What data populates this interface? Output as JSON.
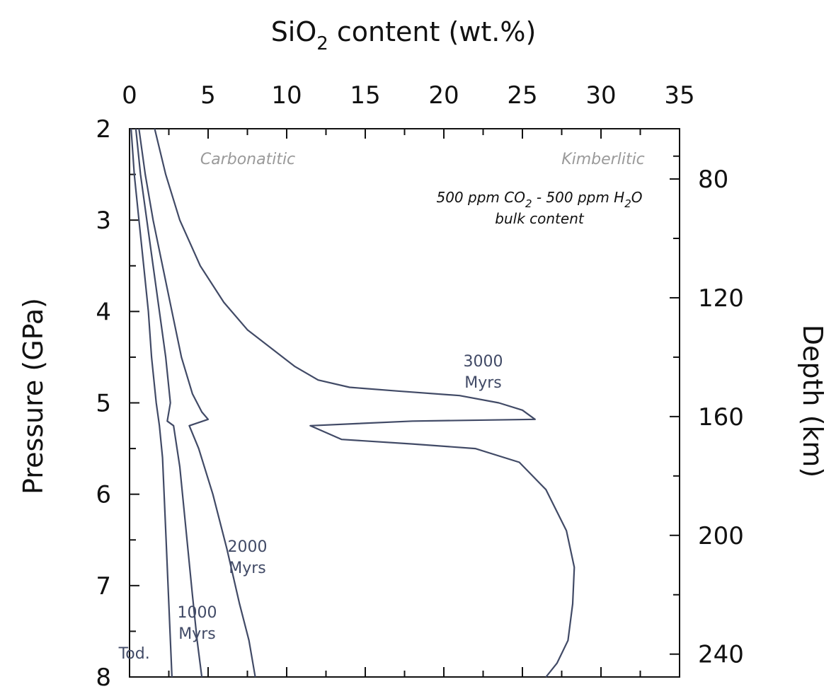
{
  "chart_data": {
    "type": "line",
    "title": "",
    "xlabel": "SiO",
    "xlabel_sub": "2",
    "xlabel_rest": " content (wt.%)",
    "ylabel": "Pressure (GPa)",
    "y2label": "Depth (km)",
    "xlim": [
      0,
      35
    ],
    "ylim": [
      2,
      8
    ],
    "y_inverted": true,
    "x_axis_position": "top",
    "x_ticks": [
      0,
      5,
      10,
      15,
      20,
      25,
      30,
      35
    ],
    "y_ticks": [
      2,
      3,
      4,
      5,
      6,
      7,
      8
    ],
    "y2_ticks": [
      80,
      120,
      160,
      200,
      240
    ],
    "y2_tick_pressure": [
      2.55,
      3.85,
      5.15,
      6.45,
      7.75
    ],
    "grid": false,
    "region_labels": {
      "left": "Carbonatitic",
      "right": "Kimberlitic"
    },
    "note": {
      "line1_a": "500 ppm CO",
      "line1_sub": "2",
      "line1_b": " - 500 ppm H",
      "line1_sub2": "2",
      "line1_c": "O",
      "line2": "bulk content"
    },
    "series": [
      {
        "label_lines": [
          "Tod."
        ],
        "label_at": {
          "x": 0.3,
          "y": 7.8
        },
        "x": [
          0.1,
          0.3,
          0.6,
          0.9,
          1.2,
          1.4,
          1.7,
          1.9,
          2.1,
          2.3,
          2.5,
          2.7
        ],
        "y": [
          2.0,
          2.5,
          3.0,
          3.5,
          4.0,
          4.5,
          5.0,
          5.25,
          5.6,
          6.4,
          7.2,
          8.0
        ]
      },
      {
        "label_lines": [
          "1000",
          "Myrs"
        ],
        "label_at": {
          "x": 4.3,
          "y": 7.35
        },
        "x": [
          0.4,
          0.7,
          1.1,
          1.5,
          1.9,
          2.3,
          2.6,
          2.4,
          2.8,
          3.2,
          3.6,
          4.0,
          4.3,
          4.6
        ],
        "y": [
          2.0,
          2.5,
          3.0,
          3.5,
          4.0,
          4.5,
          5.0,
          5.2,
          5.25,
          5.7,
          6.4,
          7.1,
          7.6,
          8.0
        ]
      },
      {
        "label_lines": [
          "2000",
          "Myrs"
        ],
        "label_at": {
          "x": 7.5,
          "y": 6.63
        },
        "x": [
          0.6,
          1.0,
          1.5,
          2.1,
          2.7,
          3.3,
          4.0,
          4.6,
          5.0,
          3.8,
          4.4,
          5.3,
          6.2,
          7.0,
          7.6,
          8.0
        ],
        "y": [
          2.0,
          2.5,
          3.0,
          3.5,
          4.0,
          4.5,
          4.9,
          5.1,
          5.18,
          5.25,
          5.5,
          6.0,
          6.6,
          7.2,
          7.6,
          8.0
        ]
      },
      {
        "label_lines": [
          "3000",
          "Myrs"
        ],
        "label_at": {
          "x": 22.5,
          "y": 4.6
        },
        "x": [
          1.6,
          2.3,
          3.2,
          4.5,
          6.0,
          7.5,
          9.0,
          10.5,
          12.0,
          14.0,
          17.0,
          21.0,
          23.5,
          25.0,
          25.8,
          18.0,
          11.5,
          13.5,
          18.0,
          22.0,
          24.8,
          26.5,
          27.8,
          28.3,
          28.2,
          27.9,
          27.2,
          26.5
        ],
        "y": [
          2.0,
          2.5,
          3.0,
          3.5,
          3.9,
          4.2,
          4.4,
          4.6,
          4.75,
          4.83,
          4.87,
          4.92,
          5.0,
          5.08,
          5.18,
          5.2,
          5.25,
          5.4,
          5.45,
          5.5,
          5.65,
          5.95,
          6.4,
          6.8,
          7.2,
          7.6,
          7.85,
          8.0
        ]
      }
    ]
  }
}
